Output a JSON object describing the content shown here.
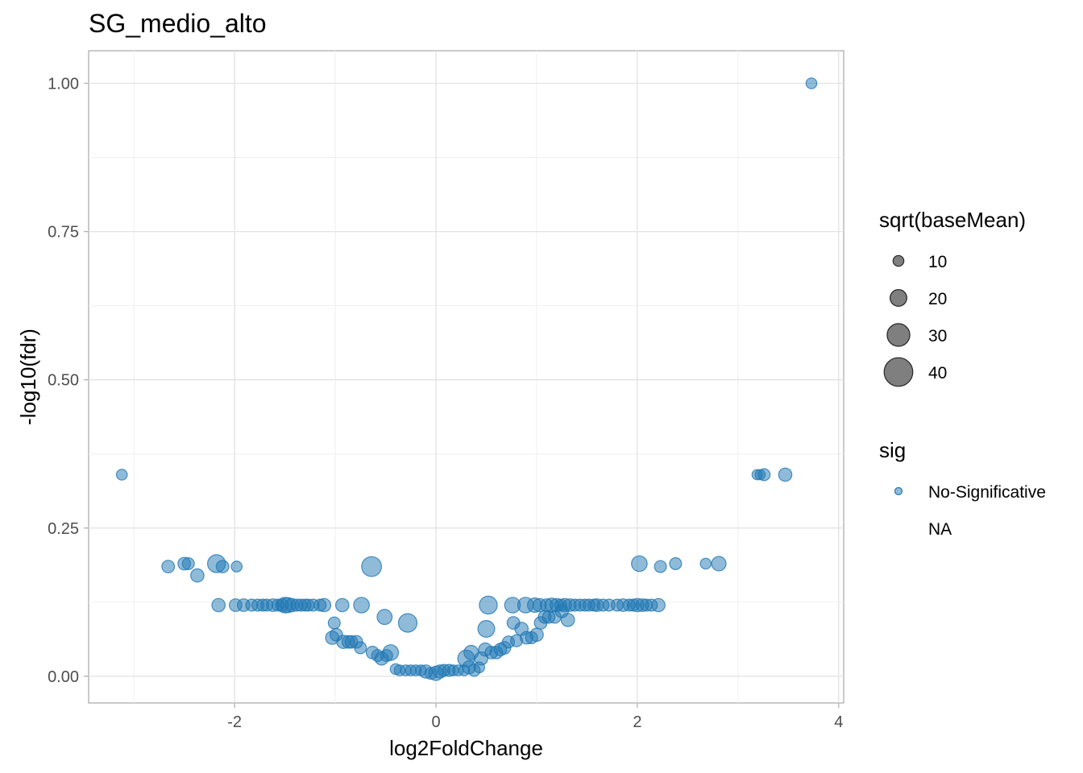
{
  "chart_data": {
    "type": "scatter",
    "title": "SG_medio_alto",
    "xlabel": "log2FoldChange",
    "ylabel": "-log10(fdr)",
    "xlim": [
      -3.45,
      4.05
    ],
    "ylim": [
      -0.045,
      1.055
    ],
    "x_ticks": [
      -2,
      0,
      2,
      4
    ],
    "x_tick_labels": [
      "-2",
      "0",
      "2",
      "4"
    ],
    "y_ticks": [
      0,
      0.25,
      0.5,
      0.75,
      1.0
    ],
    "y_tick_labels": [
      "0.00",
      "0.25",
      "0.50",
      "0.75",
      "1.00"
    ],
    "grid": true,
    "point_color": "#1f77b4",
    "point_alpha": 0.5,
    "size_legend": {
      "title": "sqrt(baseMean)",
      "values": [
        10,
        20,
        30,
        40
      ],
      "labels": [
        "10",
        "20",
        "30",
        "40"
      ]
    },
    "color_legend": {
      "title": "sig",
      "entries": [
        "No-Significative",
        "NA"
      ]
    },
    "legend_position": "right",
    "series": [
      {
        "group": "No-Significative",
        "x": [
          3.73,
          -3.12,
          3.19,
          3.22,
          3.26,
          3.47,
          -2.66,
          -2.5,
          -2.46,
          -2.37,
          -2.18,
          -2.12,
          -1.98,
          2.02,
          2.23,
          2.38,
          2.68,
          2.81,
          -0.64,
          -2.16,
          -1.99,
          -1.91,
          -1.83,
          -1.77,
          -1.72,
          -1.68,
          -1.62,
          -1.57,
          -1.53,
          -1.5,
          -1.47,
          -1.43,
          -1.38,
          -1.34,
          -1.3,
          -1.27,
          -1.22,
          -1.15,
          -1.11,
          -0.93,
          -0.74,
          0.52,
          0.76,
          0.89,
          0.98,
          1.03,
          1.1,
          1.15,
          1.2,
          1.24,
          1.28,
          1.33,
          1.38,
          1.43,
          1.48,
          1.52,
          1.57,
          1.6,
          1.66,
          1.72,
          1.8,
          1.86,
          1.92,
          1.96,
          2.0,
          2.05,
          2.09,
          2.14,
          2.21,
          -1.01,
          -1.03,
          -0.99,
          -0.92,
          -0.87,
          -0.84,
          -0.79,
          -0.75,
          -0.63,
          -0.58,
          -0.54,
          -0.49,
          -0.45,
          -0.28,
          -0.51,
          -0.4,
          -0.36,
          -0.3,
          -0.25,
          -0.2,
          -0.15,
          -0.1,
          -0.05,
          0.0,
          0.04,
          0.08,
          0.13,
          0.17,
          0.22,
          0.28,
          0.33,
          0.38,
          0.43,
          0.3,
          0.35,
          0.45,
          0.49,
          0.5,
          0.55,
          0.6,
          0.64,
          0.68,
          0.72,
          0.77,
          0.8,
          0.85,
          0.9,
          0.95,
          1.0,
          1.04,
          1.08,
          1.12,
          1.18,
          1.25,
          1.31
        ],
        "y": [
          1.0,
          0.34,
          0.34,
          0.34,
          0.34,
          0.34,
          0.185,
          0.19,
          0.19,
          0.17,
          0.19,
          0.185,
          0.185,
          0.19,
          0.185,
          0.19,
          0.19,
          0.19,
          0.185,
          0.12,
          0.12,
          0.12,
          0.12,
          0.12,
          0.12,
          0.12,
          0.12,
          0.12,
          0.12,
          0.12,
          0.12,
          0.12,
          0.12,
          0.12,
          0.12,
          0.12,
          0.12,
          0.12,
          0.12,
          0.12,
          0.12,
          0.12,
          0.12,
          0.12,
          0.12,
          0.12,
          0.12,
          0.12,
          0.12,
          0.12,
          0.12,
          0.12,
          0.12,
          0.12,
          0.12,
          0.12,
          0.12,
          0.12,
          0.12,
          0.12,
          0.12,
          0.12,
          0.12,
          0.12,
          0.12,
          0.12,
          0.12,
          0.12,
          0.12,
          0.09,
          0.065,
          0.07,
          0.058,
          0.058,
          0.058,
          0.058,
          0.048,
          0.04,
          0.035,
          0.03,
          0.035,
          0.04,
          0.09,
          0.1,
          0.012,
          0.01,
          0.01,
          0.01,
          0.01,
          0.01,
          0.008,
          0.005,
          0.005,
          0.008,
          0.01,
          0.01,
          0.01,
          0.01,
          0.01,
          0.015,
          0.01,
          0.015,
          0.03,
          0.04,
          0.03,
          0.045,
          0.08,
          0.04,
          0.04,
          0.045,
          0.048,
          0.058,
          0.09,
          0.06,
          0.08,
          0.065,
          0.065,
          0.07,
          0.09,
          0.1,
          0.1,
          0.1,
          0.11,
          0.095
        ],
        "size": [
          10,
          10,
          9,
          9,
          12,
          14,
          13,
          13,
          12,
          14,
          22,
          13,
          10,
          18,
          12,
          12,
          10,
          16,
          25,
          14,
          13,
          13,
          12,
          12,
          12,
          12,
          13,
          12,
          13,
          18,
          17,
          14,
          12,
          12,
          12,
          12,
          12,
          12,
          14,
          14,
          18,
          22,
          18,
          18,
          16,
          14,
          13,
          15,
          14,
          12,
          14,
          13,
          12,
          12,
          12,
          12,
          12,
          13,
          12,
          12,
          12,
          13,
          12,
          12,
          14,
          13,
          12,
          12,
          14,
          12,
          14,
          13,
          14,
          13,
          13,
          13,
          12,
          13,
          12,
          14,
          12,
          18,
          23,
          17,
          10,
          10,
          10,
          10,
          10,
          10,
          14,
          12,
          16,
          14,
          12,
          12,
          10,
          10,
          10,
          14,
          12,
          10,
          20,
          16,
          14,
          14,
          20,
          13,
          13,
          13,
          13,
          12,
          13,
          12,
          14,
          13,
          12,
          14,
          13,
          13,
          13,
          13,
          14,
          14
        ]
      }
    ]
  }
}
